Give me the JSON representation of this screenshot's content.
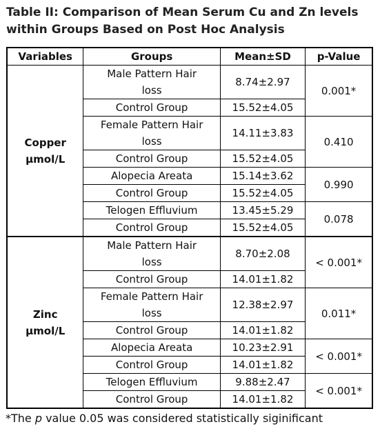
{
  "header": {
    "title": [
      "Table II: Comparison of Mean Serum Cu and Zn levels",
      "within Groups Based on Post Hoc Analysis"
    ]
  },
  "table": {
    "columns": [
      "Variables",
      "Groups",
      "Mean±SD",
      "p-Value"
    ],
    "sections": [
      {
        "variable": [
          "Copper",
          "µmol/L"
        ],
        "comparisons": [
          {
            "rows": [
              {
                "group": [
                  "Male Pattern Hair",
                  "loss"
                ],
                "mean": "8.74±2.97"
              },
              {
                "group": [
                  "Control Group"
                ],
                "mean": "15.52±4.05"
              }
            ],
            "p": "0.001*"
          },
          {
            "rows": [
              {
                "group": [
                  "Female Pattern Hair",
                  "loss"
                ],
                "mean": "14.11±3.83"
              },
              {
                "group": [
                  "Control Group"
                ],
                "mean": "15.52±4.05"
              }
            ],
            "p": "0.410"
          },
          {
            "rows": [
              {
                "group": [
                  "Alopecia Areata"
                ],
                "mean": "15.14±3.62"
              },
              {
                "group": [
                  "Control Group"
                ],
                "mean": "15.52±4.05"
              }
            ],
            "p": "0.990"
          },
          {
            "rows": [
              {
                "group": [
                  "Telogen Effluvium"
                ],
                "mean": "13.45±5.29"
              },
              {
                "group": [
                  "Control Group"
                ],
                "mean": "15.52±4.05"
              }
            ],
            "p": "0.078"
          }
        ]
      },
      {
        "variable": [
          "Zinc",
          "µmol/L"
        ],
        "comparisons": [
          {
            "rows": [
              {
                "group": [
                  "Male Pattern Hair",
                  "loss"
                ],
                "mean": "8.70±2.08"
              },
              {
                "group": [
                  "Control Group"
                ],
                "mean": "14.01±1.82"
              }
            ],
            "p": "< 0.001*"
          },
          {
            "rows": [
              {
                "group": [
                  "Female Pattern Hair",
                  "loss"
                ],
                "mean": "12.38±2.97"
              },
              {
                "group": [
                  "Control Group"
                ],
                "mean": "14.01±1.82"
              }
            ],
            "p": "0.011*"
          },
          {
            "rows": [
              {
                "group": [
                  "Alopecia Areata"
                ],
                "mean": "10.23±2.91"
              },
              {
                "group": [
                  "Control Group"
                ],
                "mean": "14.01±1.82"
              }
            ],
            "p": "< 0.001*"
          },
          {
            "rows": [
              {
                "group": [
                  "Telogen Effluvium"
                ],
                "mean": "9.88±2.47"
              },
              {
                "group": [
                  "Control Group"
                ],
                "mean": "14.01±1.82"
              }
            ],
            "p": "< 0.001*"
          }
        ]
      }
    ]
  },
  "footnote": [
    "*The ",
    "p",
    " value 0.05 was considered statistically siginificant"
  ]
}
